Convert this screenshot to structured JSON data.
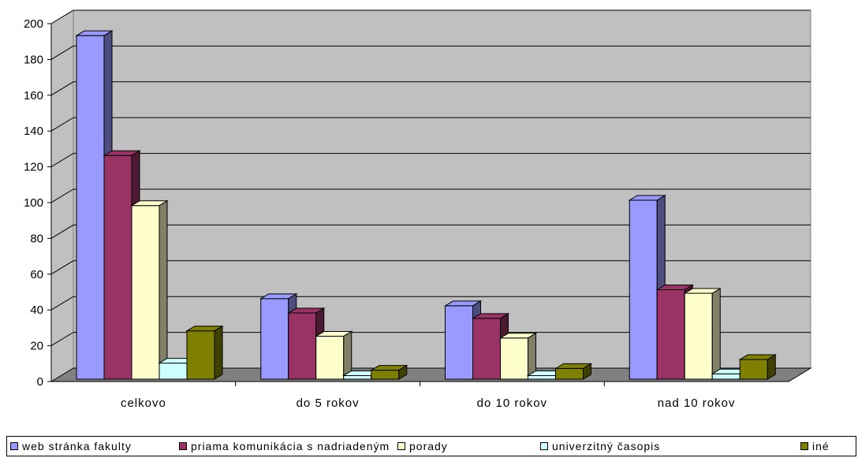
{
  "chart_data": {
    "type": "bar",
    "categories": [
      "celkovo",
      "do 5 rokov",
      "do 10 rokov",
      "nad 10 rokov"
    ],
    "series": [
      {
        "name": "web stránka fakulty",
        "values": [
          192,
          45,
          41,
          100
        ],
        "color": "#9999ff"
      },
      {
        "name": "priama komunikácia s nadriadeným",
        "values": [
          125,
          37,
          34,
          50
        ],
        "color": "#993366"
      },
      {
        "name": "porady",
        "values": [
          97,
          24,
          23,
          48
        ],
        "color": "#ffffcc"
      },
      {
        "name": "univerzitný časopis",
        "values": [
          9,
          2,
          2,
          3
        ],
        "color": "#ccffff"
      },
      {
        "name": "iné",
        "values": [
          27,
          5,
          6,
          11
        ],
        "color": "#808000"
      }
    ],
    "yticks": [
      "0",
      "20",
      "40",
      "60",
      "80",
      "100",
      "120",
      "140",
      "160",
      "180",
      "200"
    ],
    "ylim": [
      0,
      200
    ],
    "grid": true,
    "legend_position": "bottom",
    "wall_color": "#c0c0c0",
    "floor_color": "#808080"
  }
}
